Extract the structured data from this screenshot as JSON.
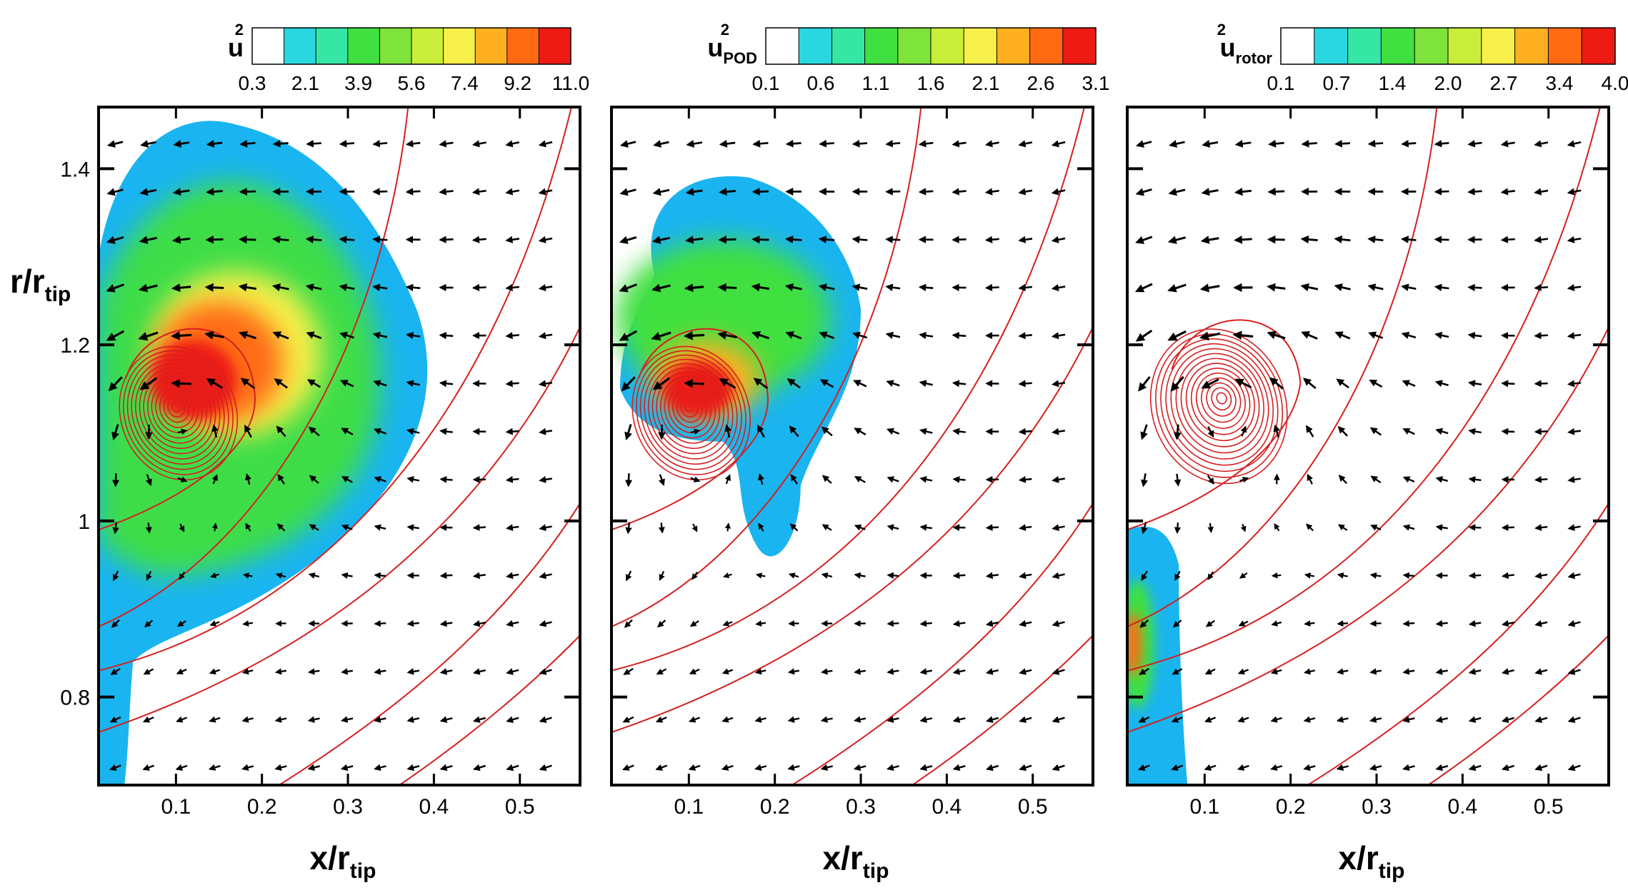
{
  "chart_data": [
    {
      "type": "contour",
      "panel": "left",
      "colorbar": {
        "title_main": "u",
        "title_sup": "2",
        "title_sub": "",
        "tick_labels": [
          "0.3",
          "2.1",
          "3.9",
          "5.6",
          "7.4",
          "9.2",
          "11.0"
        ],
        "range": [
          0.3,
          11.0
        ]
      },
      "xlabel_main": "x/r",
      "xlabel_sub": "tip",
      "ylabel_main": "r/r",
      "ylabel_sub": "tip",
      "xlim": [
        0.01,
        0.57
      ],
      "ylim": [
        0.7,
        1.47
      ],
      "x_ticks": [
        "0.1",
        "0.2",
        "0.3",
        "0.4",
        "0.5"
      ],
      "y_ticks": [
        "1.4",
        "1.2",
        "1",
        "0.8"
      ],
      "vortex_center": [
        0.1,
        1.13
      ]
    },
    {
      "type": "contour",
      "panel": "middle",
      "colorbar": {
        "title_main": "u",
        "title_sup": "2",
        "title_sub": "POD",
        "tick_labels": [
          "0.1",
          "0.6",
          "1.1",
          "1.6",
          "2.1",
          "2.6",
          "3.1"
        ],
        "range": [
          0.1,
          3.1
        ]
      },
      "xlabel_main": "x/r",
      "xlabel_sub": "tip",
      "xlim": [
        0.01,
        0.57
      ],
      "ylim": [
        0.7,
        1.47
      ],
      "x_ticks": [
        "0.1",
        "0.2",
        "0.3",
        "0.4",
        "0.5"
      ],
      "vortex_center": [
        0.1,
        1.13
      ]
    },
    {
      "type": "contour",
      "panel": "right",
      "colorbar": {
        "title_main": "u",
        "title_sup": "2",
        "title_sub": "rotor",
        "tick_labels": [
          "0.1",
          "0.7",
          "1.4",
          "2.0",
          "2.7",
          "3.4",
          "4.0"
        ],
        "range": [
          0.1,
          4.0
        ]
      },
      "xlabel_main": "x/r",
      "xlabel_sub": "tip",
      "xlim": [
        0.01,
        0.57
      ],
      "ylim": [
        0.7,
        1.47
      ],
      "x_ticks": [
        "0.1",
        "0.2",
        "0.3",
        "0.4",
        "0.5"
      ],
      "vortex_center": [
        0.12,
        1.14
      ]
    }
  ],
  "colormap": [
    "#ffffff",
    "#1ab4f0",
    "#2ad7e0",
    "#35e6a5",
    "#3fe040",
    "#7ee33a",
    "#c9ee3a",
    "#f7f04a",
    "#ffb020",
    "#ff6a12",
    "#ee1b14",
    "#cc1010"
  ],
  "colors": {
    "streamline": "#d42020",
    "vector": "#000000"
  }
}
